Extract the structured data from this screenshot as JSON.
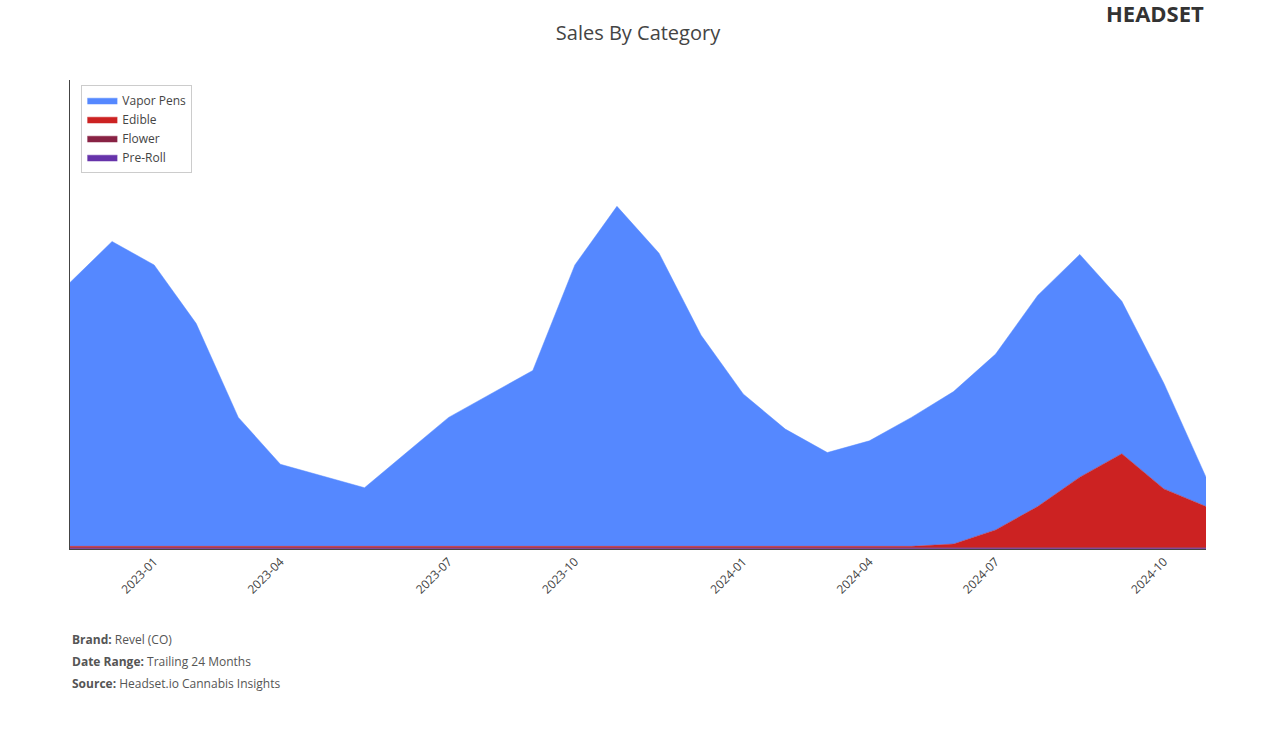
{
  "chart_data": {
    "type": "area",
    "title": "Sales By Category",
    "stacked": true,
    "categories": [
      null,
      null,
      "2023-01",
      null,
      null,
      "2023-04",
      null,
      null,
      null,
      "2023-07",
      null,
      null,
      "2023-10",
      null,
      null,
      null,
      "2024-01",
      null,
      null,
      "2024-04",
      null,
      null,
      "2024-07",
      null,
      null,
      null,
      "2024-10",
      null
    ],
    "series": [
      {
        "name": "Pre-Roll",
        "color": "#6633aa",
        "values": [
          10,
          10,
          10,
          10,
          10,
          10,
          10,
          10,
          10,
          10,
          10,
          10,
          10,
          10,
          10,
          10,
          10,
          10,
          10,
          10,
          10,
          10,
          10,
          10,
          10,
          10,
          10,
          10
        ]
      },
      {
        "name": "Flower",
        "color": "#882244",
        "values": [
          15,
          15,
          15,
          15,
          15,
          15,
          15,
          15,
          15,
          15,
          15,
          15,
          15,
          15,
          15,
          15,
          15,
          15,
          15,
          15,
          15,
          15,
          15,
          15,
          15,
          15,
          15,
          15
        ]
      },
      {
        "name": "Edible",
        "color": "#cc2222",
        "values": [
          20,
          20,
          20,
          20,
          20,
          20,
          20,
          20,
          20,
          20,
          20,
          20,
          20,
          20,
          20,
          20,
          20,
          20,
          20,
          20,
          20,
          60,
          300,
          700,
          1200,
          1600,
          1000,
          700
        ]
      },
      {
        "name": "Vapor Pens",
        "color": "#5588ff",
        "values": [
          4500,
          5200,
          4800,
          3800,
          2200,
          1400,
          1200,
          1000,
          1600,
          2200,
          2600,
          3000,
          4800,
          5800,
          5000,
          3600,
          2600,
          2000,
          1600,
          1800,
          2200,
          2600,
          3000,
          3600,
          3800,
          2600,
          1800,
          500
        ]
      }
    ],
    "ylim": [
      0,
      8000
    ],
    "tick_labels": "x",
    "grid": false,
    "legend": "upper left",
    "annotations": [
      {
        "label": "Brand:",
        "text": "Revel (CO)"
      },
      {
        "label": "Date Range:",
        "text": "Trailing 24 Months"
      },
      {
        "label": "Source:",
        "text": "Headset.io Cannabis Insights"
      },
      {
        "text": "HEADSET"
      }
    ]
  }
}
